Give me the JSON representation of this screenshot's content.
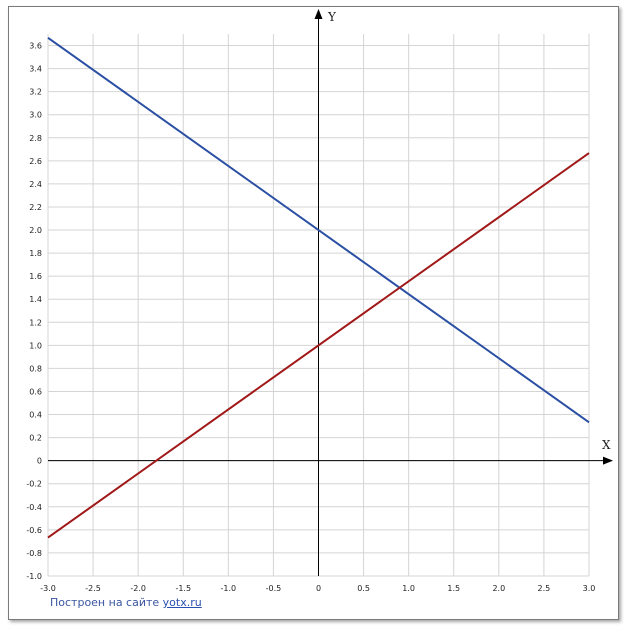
{
  "chart_data": {
    "type": "line",
    "xlabel": "X",
    "ylabel": "Y",
    "xlim": [
      -3.0,
      3.0
    ],
    "ylim": [
      -1.0,
      3.7
    ],
    "x_ticks": [
      -3.0,
      -2.5,
      -2.0,
      -1.5,
      -1.0,
      -0.5,
      0,
      0.5,
      1.0,
      1.5,
      2.0,
      2.5,
      3.0
    ],
    "y_ticks": [
      -1.0,
      -0.8,
      -0.6,
      -0.4,
      -0.2,
      0,
      0.2,
      0.4,
      0.6,
      0.8,
      1.0,
      1.2,
      1.4,
      1.6,
      1.8,
      2.0,
      2.2,
      2.4,
      2.6,
      2.8,
      3.0,
      3.2,
      3.4,
      3.6
    ],
    "x_tick_labels": [
      "-3.0",
      "-2.5",
      "-2.0",
      "-1.5",
      "-1.0",
      "-0.5",
      "0",
      "0.5",
      "1.0",
      "1.5",
      "2.0",
      "2.5",
      "3.0"
    ],
    "y_tick_labels": [
      "-1.0",
      "-0.8",
      "-0.6",
      "-0.4",
      "-0.2",
      "0",
      "0.2",
      "0.4",
      "0.6",
      "0.8",
      "1.0",
      "1.2",
      "1.4",
      "1.6",
      "1.8",
      "2.0",
      "2.2",
      "2.4",
      "2.6",
      "2.8",
      "3.0",
      "3.2",
      "3.4",
      "3.6"
    ],
    "grid": true,
    "series": [
      {
        "color": "#2a4fa3",
        "x": [
          -3.0,
          3.0
        ],
        "y": [
          3.667,
          0.333
        ]
      },
      {
        "color": "#a01818",
        "x": [
          -3.0,
          3.0
        ],
        "y": [
          -0.667,
          2.667
        ]
      }
    ]
  },
  "footer": {
    "text": "Построен на сайте ",
    "link": "yotx.ru"
  }
}
